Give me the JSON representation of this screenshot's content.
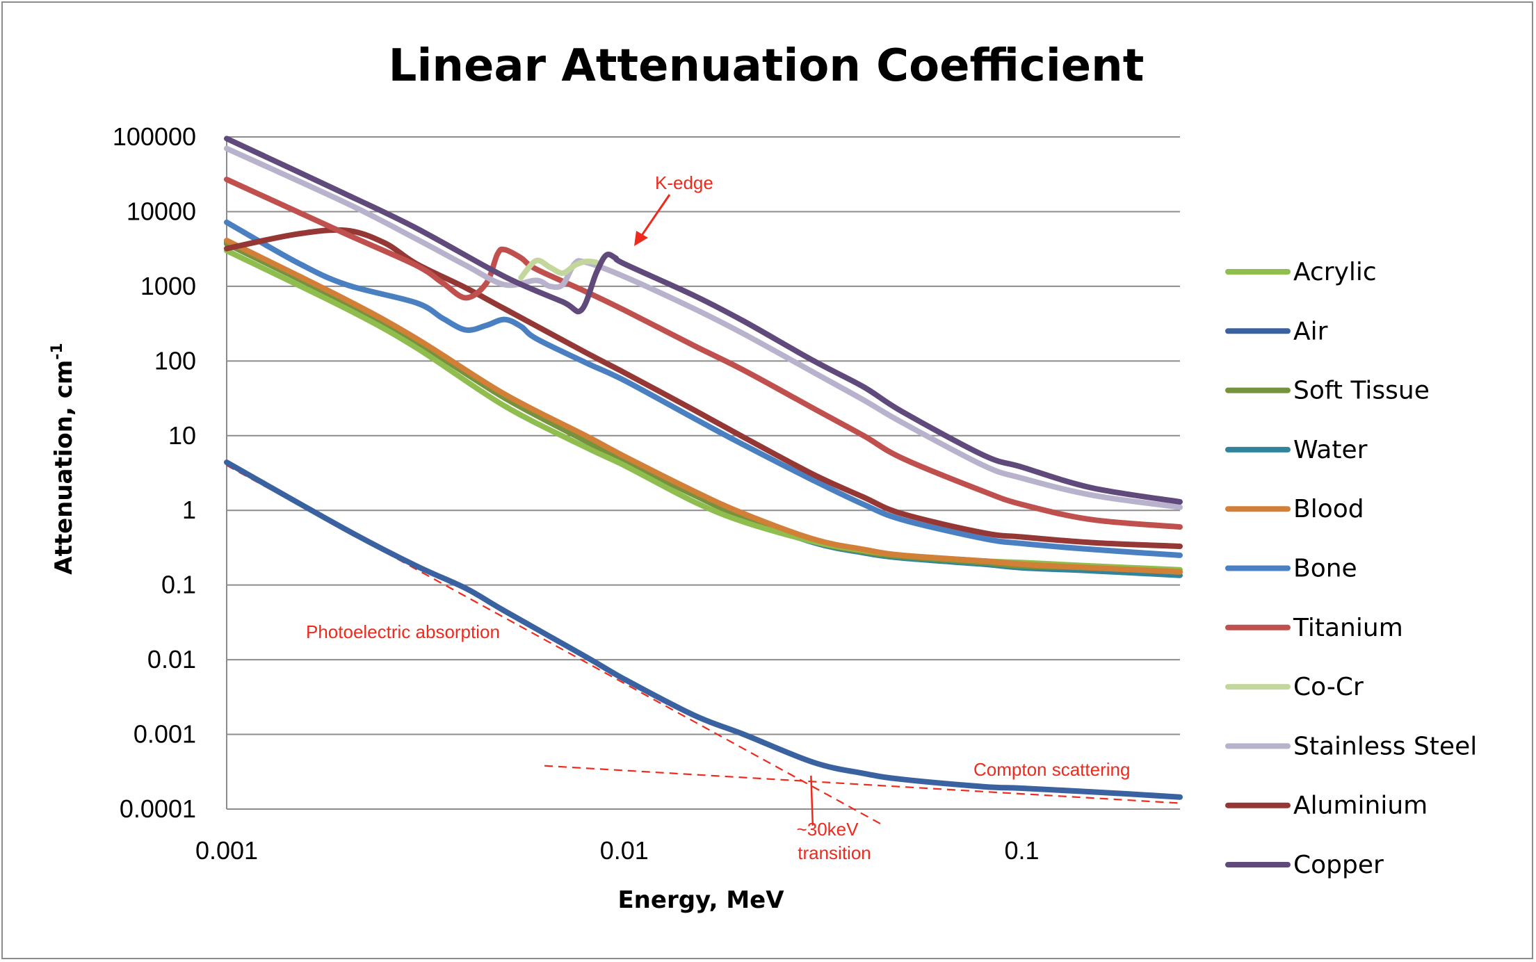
{
  "chart_data": {
    "type": "line",
    "title": "Linear Attenuation Coefficient",
    "xlabel": "Energy, MeV",
    "ylabel": "Attenuation, cm",
    "ylabel_sup": "-1",
    "xscale": "log",
    "yscale": "log",
    "xlim": [
      0.001,
      0.25
    ],
    "ylim": [
      0.0001,
      100000
    ],
    "grid": "horizontal",
    "legend_position": "right",
    "x_ticks": [
      {
        "value": 0.001,
        "label": "0.001"
      },
      {
        "value": 0.01,
        "label": "0.01"
      },
      {
        "value": 0.1,
        "label": "0.1"
      }
    ],
    "y_ticks": [
      {
        "value": 100000,
        "label": "100000"
      },
      {
        "value": 10000,
        "label": "10000"
      },
      {
        "value": 1000,
        "label": "1000"
      },
      {
        "value": 100,
        "label": "100"
      },
      {
        "value": 10,
        "label": "10"
      },
      {
        "value": 1,
        "label": "1"
      },
      {
        "value": 0.1,
        "label": "0.1"
      },
      {
        "value": 0.01,
        "label": "0.01"
      },
      {
        "value": 0.001,
        "label": "0.001"
      },
      {
        "value": 0.0001,
        "label": "0.0001"
      }
    ],
    "series": [
      {
        "name": "Acrylic",
        "color": "#8fbd4e",
        "points": [
          [
            0.001,
            3000
          ],
          [
            0.002,
            500
          ],
          [
            0.003,
            150
          ],
          [
            0.005,
            25
          ],
          [
            0.008,
            7
          ],
          [
            0.01,
            4
          ],
          [
            0.015,
            1.3
          ],
          [
            0.02,
            0.7
          ],
          [
            0.03,
            0.38
          ],
          [
            0.04,
            0.29
          ],
          [
            0.05,
            0.25
          ],
          [
            0.08,
            0.21
          ],
          [
            0.1,
            0.2
          ],
          [
            0.15,
            0.18
          ],
          [
            0.25,
            0.16
          ]
        ]
      },
      {
        "name": "Air",
        "color": "#3b62a0",
        "points": [
          [
            0.001,
            4.4
          ],
          [
            0.002,
            0.55
          ],
          [
            0.003,
            0.18
          ],
          [
            0.004,
            0.09
          ],
          [
            0.005,
            0.045
          ],
          [
            0.008,
            0.011
          ],
          [
            0.01,
            0.0055
          ],
          [
            0.015,
            0.0018
          ],
          [
            0.02,
            0.001
          ],
          [
            0.03,
            0.00042
          ],
          [
            0.04,
            0.0003
          ],
          [
            0.05,
            0.00025
          ],
          [
            0.08,
            0.0002
          ],
          [
            0.1,
            0.00019
          ],
          [
            0.15,
            0.00017
          ],
          [
            0.25,
            0.000145
          ]
        ]
      },
      {
        "name": "Soft Tissue",
        "color": "#76923c",
        "points": [
          [
            0.001,
            3700
          ],
          [
            0.002,
            600
          ],
          [
            0.003,
            180
          ],
          [
            0.005,
            32
          ],
          [
            0.008,
            8.5
          ],
          [
            0.01,
            4.6
          ],
          [
            0.015,
            1.6
          ],
          [
            0.02,
            0.8
          ],
          [
            0.03,
            0.38
          ],
          [
            0.04,
            0.28
          ],
          [
            0.05,
            0.24
          ],
          [
            0.08,
            0.2
          ],
          [
            0.1,
            0.18
          ],
          [
            0.15,
            0.17
          ],
          [
            0.25,
            0.15
          ]
        ]
      },
      {
        "name": "Water",
        "color": "#31849b",
        "points": [
          [
            0.001,
            3900
          ],
          [
            0.002,
            620
          ],
          [
            0.003,
            190
          ],
          [
            0.005,
            33
          ],
          [
            0.008,
            8.5
          ],
          [
            0.01,
            4.7
          ],
          [
            0.015,
            1.6
          ],
          [
            0.02,
            0.8
          ],
          [
            0.03,
            0.37
          ],
          [
            0.04,
            0.27
          ],
          [
            0.05,
            0.23
          ],
          [
            0.08,
            0.19
          ],
          [
            0.1,
            0.17
          ],
          [
            0.15,
            0.155
          ],
          [
            0.25,
            0.135
          ]
        ]
      },
      {
        "name": "Blood",
        "color": "#d27f37",
        "points": [
          [
            0.001,
            4100
          ],
          [
            0.002,
            660
          ],
          [
            0.003,
            200
          ],
          [
            0.005,
            36
          ],
          [
            0.008,
            10
          ],
          [
            0.01,
            5.3
          ],
          [
            0.015,
            1.8
          ],
          [
            0.02,
            0.9
          ],
          [
            0.03,
            0.41
          ],
          [
            0.04,
            0.3
          ],
          [
            0.05,
            0.25
          ],
          [
            0.08,
            0.21
          ],
          [
            0.1,
            0.19
          ],
          [
            0.15,
            0.17
          ],
          [
            0.25,
            0.15
          ]
        ]
      },
      {
        "name": "Bone",
        "color": "#4a7fc1",
        "points": [
          [
            0.001,
            7200
          ],
          [
            0.0015,
            2100
          ],
          [
            0.002,
            1050
          ],
          [
            0.003,
            600
          ],
          [
            0.0035,
            370
          ],
          [
            0.004,
            260
          ],
          [
            0.0045,
            300
          ],
          [
            0.005,
            360
          ],
          [
            0.0055,
            290
          ],
          [
            0.006,
            200
          ],
          [
            0.008,
            95
          ],
          [
            0.01,
            55
          ],
          [
            0.015,
            17
          ],
          [
            0.02,
            7.5
          ],
          [
            0.03,
            2.5
          ],
          [
            0.04,
            1.2
          ],
          [
            0.05,
            0.75
          ],
          [
            0.08,
            0.42
          ],
          [
            0.1,
            0.36
          ],
          [
            0.15,
            0.3
          ],
          [
            0.25,
            0.25
          ]
        ]
      },
      {
        "name": "Titanium",
        "color": "#c0504d",
        "points": [
          [
            0.001,
            27000
          ],
          [
            0.002,
            5000
          ],
          [
            0.003,
            1900
          ],
          [
            0.0035,
            1100
          ],
          [
            0.004,
            700
          ],
          [
            0.0045,
            1100
          ],
          [
            0.0048,
            2700
          ],
          [
            0.005,
            3100
          ],
          [
            0.0055,
            2400
          ],
          [
            0.006,
            1700
          ],
          [
            0.008,
            850
          ],
          [
            0.01,
            480
          ],
          [
            0.015,
            160
          ],
          [
            0.02,
            75
          ],
          [
            0.03,
            23
          ],
          [
            0.04,
            10
          ],
          [
            0.05,
            5
          ],
          [
            0.08,
            1.8
          ],
          [
            0.1,
            1.2
          ],
          [
            0.15,
            0.75
          ],
          [
            0.25,
            0.6
          ]
        ]
      },
      {
        "name": "Co-Cr",
        "color": "#c3d69b",
        "points": [
          [
            0.0055,
            1300
          ],
          [
            0.006,
            2200
          ],
          [
            0.0065,
            1800
          ],
          [
            0.007,
            1500
          ],
          [
            0.0075,
            1900
          ],
          [
            0.008,
            2150
          ],
          [
            0.0085,
            2100
          ]
        ]
      },
      {
        "name": "Stainless Steel",
        "color": "#b8b2cd",
        "points": [
          [
            0.001,
            70000
          ],
          [
            0.002,
            13000
          ],
          [
            0.003,
            4300
          ],
          [
            0.004,
            1900
          ],
          [
            0.005,
            1050
          ],
          [
            0.006,
            1200
          ],
          [
            0.0065,
            1000
          ],
          [
            0.007,
            1050
          ],
          [
            0.0075,
            2000
          ],
          [
            0.008,
            2100
          ],
          [
            0.01,
            1350
          ],
          [
            0.015,
            500
          ],
          [
            0.02,
            230
          ],
          [
            0.03,
            70
          ],
          [
            0.04,
            30
          ],
          [
            0.05,
            15
          ],
          [
            0.08,
            4
          ],
          [
            0.1,
            2.7
          ],
          [
            0.15,
            1.6
          ],
          [
            0.25,
            1.1
          ]
        ]
      },
      {
        "name": "Aluminium",
        "color": "#953735",
        "points": [
          [
            0.001,
            3200
          ],
          [
            0.0015,
            5000
          ],
          [
            0.002,
            5600
          ],
          [
            0.0025,
            3800
          ],
          [
            0.003,
            2000
          ],
          [
            0.004,
            950
          ],
          [
            0.005,
            500
          ],
          [
            0.008,
            130
          ],
          [
            0.01,
            70
          ],
          [
            0.015,
            22
          ],
          [
            0.02,
            9.5
          ],
          [
            0.03,
            3
          ],
          [
            0.04,
            1.5
          ],
          [
            0.05,
            0.9
          ],
          [
            0.08,
            0.5
          ],
          [
            0.1,
            0.44
          ],
          [
            0.15,
            0.37
          ],
          [
            0.25,
            0.33
          ]
        ]
      },
      {
        "name": "Copper",
        "color": "#604a7b",
        "points": [
          [
            0.001,
            95000
          ],
          [
            0.002,
            17000
          ],
          [
            0.003,
            6000
          ],
          [
            0.005,
            1350
          ],
          [
            0.007,
            620
          ],
          [
            0.0078,
            480
          ],
          [
            0.0085,
            1500
          ],
          [
            0.009,
            2600
          ],
          [
            0.0095,
            2400
          ],
          [
            0.01,
            2000
          ],
          [
            0.015,
            750
          ],
          [
            0.02,
            340
          ],
          [
            0.03,
            100
          ],
          [
            0.04,
            45
          ],
          [
            0.05,
            21
          ],
          [
            0.08,
            5.5
          ],
          [
            0.1,
            3.8
          ],
          [
            0.15,
            2
          ],
          [
            0.25,
            1.3
          ]
        ]
      }
    ],
    "annotations": {
      "k_edge": "K-edge",
      "photoelectric": "Photoelectric absorption",
      "compton": "Compton scattering",
      "transition_line1": "~30keV",
      "transition_line2": "transition"
    }
  }
}
